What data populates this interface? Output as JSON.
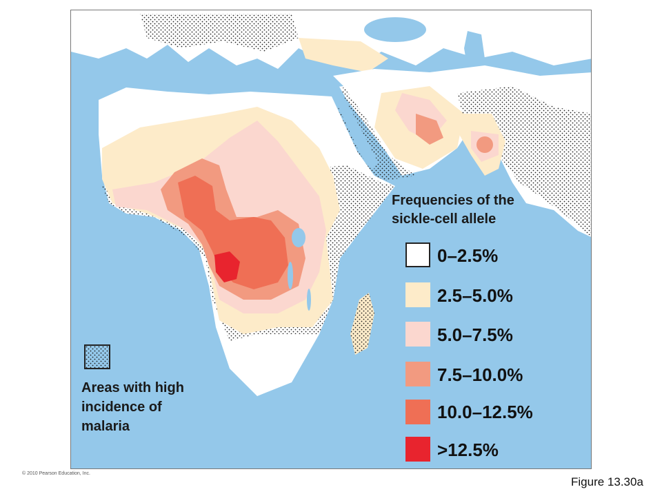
{
  "map": {
    "colors": {
      "ocean": "#94c8ea",
      "land_low": "#ffffff",
      "band_2_5_5": "#fdebc9",
      "band_5_7_5": "#fbd7cf",
      "band_7_5_10": "#f29a80",
      "band_10_12_5": "#ef6f55",
      "band_over_12_5": "#e8242e",
      "lake": "#94c8ea"
    },
    "stipple_icon": "dot-stipple-pattern"
  },
  "legend": {
    "title_line1": "Frequencies of the",
    "title_line2": "sickle-cell allele",
    "items": [
      {
        "label": "0–2.5%",
        "color": "#ffffff"
      },
      {
        "label": "2.5–5.0%",
        "color": "#fdebc9"
      },
      {
        "label": "5.0–7.5%",
        "color": "#fbd7cf"
      },
      {
        "label": "7.5–10.0%",
        "color": "#f29a80"
      },
      {
        "label": "10.0–12.5%",
        "color": "#ef6f55"
      },
      {
        "label": ">12.5%",
        "color": "#e8242e"
      }
    ]
  },
  "malaria_legend": {
    "line1": "Areas with high",
    "line2": "incidence of",
    "line3": "malaria"
  },
  "copyright": "© 2010 Pearson Education, Inc.",
  "figure_label": "Figure 13.30a"
}
